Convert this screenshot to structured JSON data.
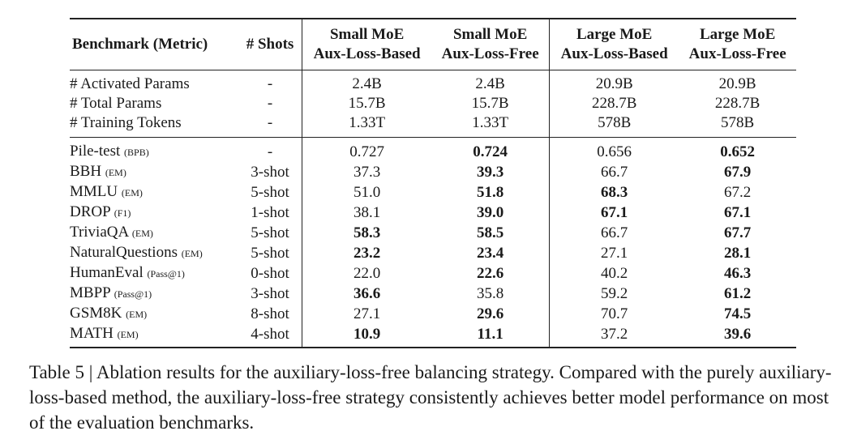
{
  "table": {
    "headers": {
      "benchmark": "Benchmark (Metric)",
      "shots": "# Shots",
      "small_based_1": "Small MoE",
      "small_based_2": "Aux-Loss-Based",
      "small_free_1": "Small MoE",
      "small_free_2": "Aux-Loss-Free",
      "large_based_1": "Large MoE",
      "large_based_2": "Aux-Loss-Based",
      "large_free_1": "Large MoE",
      "large_free_2": "Aux-Loss-Free"
    },
    "params_rows": [
      {
        "name": "# Activated Params",
        "shots": "-",
        "v": [
          "2.4B",
          "2.4B",
          "20.9B",
          "20.9B"
        ]
      },
      {
        "name": "# Total Params",
        "shots": "-",
        "v": [
          "15.7B",
          "15.7B",
          "228.7B",
          "228.7B"
        ]
      },
      {
        "name": "# Training Tokens",
        "shots": "-",
        "v": [
          "1.33T",
          "1.33T",
          "578B",
          "578B"
        ]
      }
    ],
    "bench_rows": [
      {
        "name": "Pile-test",
        "metric": "(BPB)",
        "shots": "-",
        "v": [
          "0.727",
          "0.724",
          "0.656",
          "0.652"
        ],
        "bold": [
          false,
          true,
          false,
          true
        ]
      },
      {
        "name": "BBH",
        "metric": "(EM)",
        "shots": "3-shot",
        "v": [
          "37.3",
          "39.3",
          "66.7",
          "67.9"
        ],
        "bold": [
          false,
          true,
          false,
          true
        ]
      },
      {
        "name": "MMLU",
        "metric": "(EM)",
        "shots": "5-shot",
        "v": [
          "51.0",
          "51.8",
          "68.3",
          "67.2"
        ],
        "bold": [
          false,
          true,
          true,
          false
        ]
      },
      {
        "name": "DROP",
        "metric": "(F1)",
        "shots": "1-shot",
        "v": [
          "38.1",
          "39.0",
          "67.1",
          "67.1"
        ],
        "bold": [
          false,
          true,
          true,
          true
        ]
      },
      {
        "name": "TriviaQA",
        "metric": "(EM)",
        "shots": "5-shot",
        "v": [
          "58.3",
          "58.5",
          "66.7",
          "67.7"
        ],
        "bold": [
          true,
          true,
          false,
          true
        ]
      },
      {
        "name": "NaturalQuestions",
        "metric": "(EM)",
        "shots": "5-shot",
        "v": [
          "23.2",
          "23.4",
          "27.1",
          "28.1"
        ],
        "bold": [
          true,
          true,
          false,
          true
        ]
      },
      {
        "name": "HumanEval",
        "metric": "(Pass@1)",
        "shots": "0-shot",
        "v": [
          "22.0",
          "22.6",
          "40.2",
          "46.3"
        ],
        "bold": [
          false,
          true,
          false,
          true
        ]
      },
      {
        "name": "MBPP",
        "metric": "(Pass@1)",
        "shots": "3-shot",
        "v": [
          "36.6",
          "35.8",
          "59.2",
          "61.2"
        ],
        "bold": [
          true,
          false,
          false,
          true
        ]
      },
      {
        "name": "GSM8K",
        "metric": "(EM)",
        "shots": "8-shot",
        "v": [
          "27.1",
          "29.6",
          "70.7",
          "74.5"
        ],
        "bold": [
          false,
          true,
          false,
          true
        ]
      },
      {
        "name": "MATH",
        "metric": "(EM)",
        "shots": "4-shot",
        "v": [
          "10.9",
          "11.1",
          "37.2",
          "39.6"
        ],
        "bold": [
          true,
          true,
          false,
          true
        ]
      }
    ]
  },
  "caption": {
    "text": "Table 5 | Ablation results for the auxiliary-loss-free balancing strategy. Compared with the purely auxiliary-loss-based method, the auxiliary-loss-free strategy consistently achieves better model performance on most of the evaluation benchmarks."
  }
}
